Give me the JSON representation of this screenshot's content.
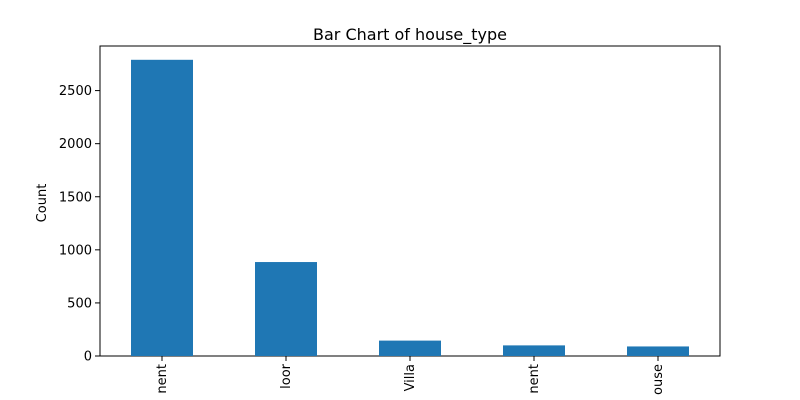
{
  "chart_data": {
    "type": "bar",
    "title": "Bar Chart of house_type",
    "xlabel": "",
    "ylabel": "Count",
    "categories": [
      "Apartment",
      "Independent Floor",
      "Villa",
      "Studio Apartment",
      "Independent House"
    ],
    "category_labels": [
      "nent",
      "loor",
      "Villa",
      "nent",
      "ouse"
    ],
    "values": [
      2790,
      885,
      145,
      100,
      90
    ],
    "ylim": [
      0,
      2920
    ],
    "yticks": [
      0,
      500,
      1000,
      1500,
      2000,
      2500
    ],
    "bar_color": "#1f77b4",
    "grid": false,
    "legend": null
  }
}
